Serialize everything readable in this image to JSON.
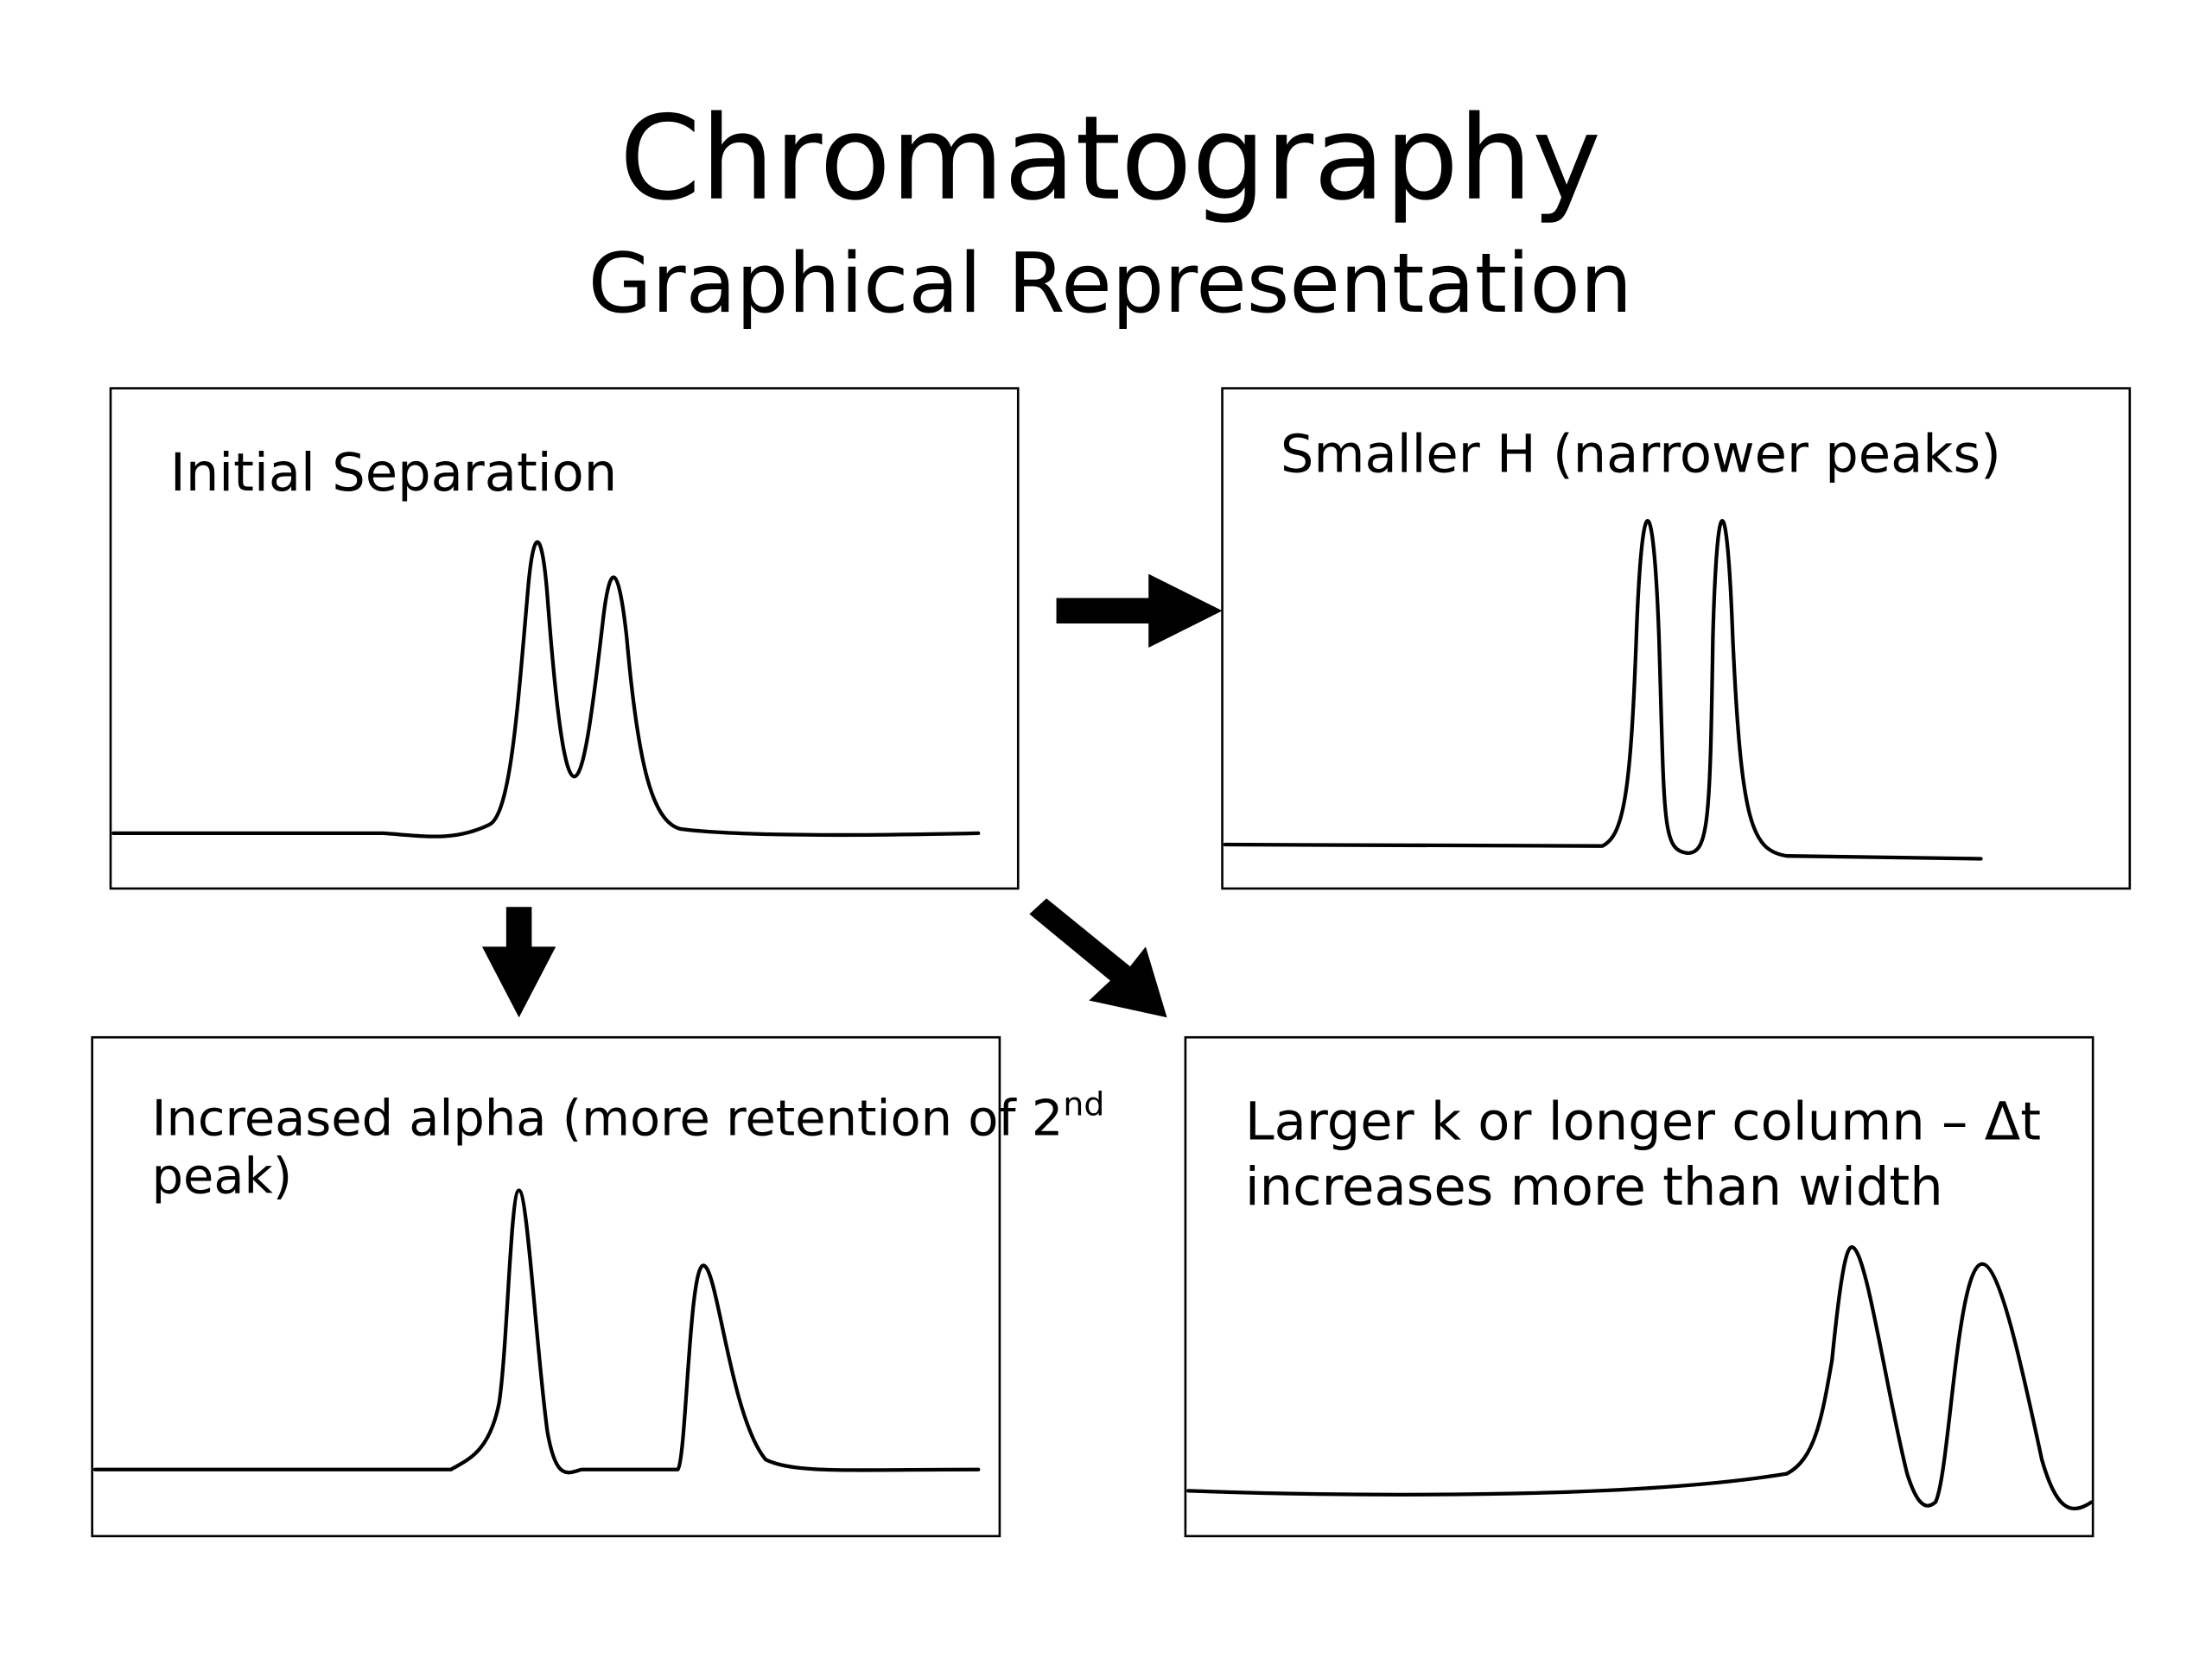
{
  "header": {
    "title": "Chromatography",
    "subtitle": "Graphical Representation"
  },
  "panels": [
    {
      "lines": [
        "Initial Separation"
      ]
    },
    {
      "lines": [
        "Smaller H (narrower peaks)"
      ]
    },
    {
      "lines": [
        "Increased alpha (more retention of 2",
        "peak)"
      ],
      "superscript": "nd"
    },
    {
      "lines": [
        "Larger k or longer column – Δt",
        "increases more than width"
      ]
    }
  ]
}
